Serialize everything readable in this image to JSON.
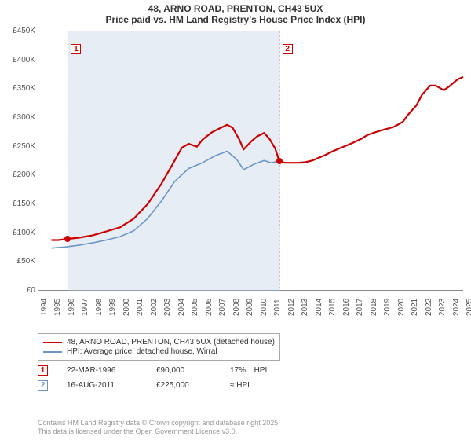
{
  "title_line1": "48, ARNO ROAD, PRENTON, CH43 5UX",
  "title_line2": "Price paid vs. HM Land Registry's House Price Index (HPI)",
  "chart": {
    "type": "line",
    "background_color": "#ffffff",
    "shade_color": "rgba(180,200,225,0.32)",
    "grid_color": "#cccccc",
    "ylim": [
      0,
      450000
    ],
    "ytick_step": 50000,
    "yticks": [
      "£0",
      "£50K",
      "£100K",
      "£150K",
      "£200K",
      "£250K",
      "£300K",
      "£350K",
      "£400K",
      "£450K"
    ],
    "xlim": [
      1994,
      2025
    ],
    "xticks": [
      "1994",
      "1995",
      "1996",
      "1997",
      "1998",
      "1999",
      "2000",
      "2001",
      "2002",
      "2003",
      "2004",
      "2005",
      "2006",
      "2007",
      "2008",
      "2009",
      "2010",
      "2011",
      "2012",
      "2013",
      "2014",
      "2015",
      "2016",
      "2017",
      "2018",
      "2019",
      "2020",
      "2021",
      "2022",
      "2023",
      "2024",
      "2025"
    ],
    "tick_fontsize": 10,
    "series": {
      "price": {
        "label": "48, ARNO ROAD, PRENTON, CH43 5UX (detached house)",
        "color": "#cc0000",
        "line_width": 2.2,
        "data": [
          [
            1995.0,
            88000
          ],
          [
            1995.5,
            88000
          ],
          [
            1996.2,
            90000
          ],
          [
            1997.0,
            92000
          ],
          [
            1998.0,
            96000
          ],
          [
            1999.0,
            103000
          ],
          [
            2000.0,
            110000
          ],
          [
            2001.0,
            125000
          ],
          [
            2002.0,
            150000
          ],
          [
            2003.0,
            185000
          ],
          [
            2003.8,
            218000
          ],
          [
            2004.5,
            248000
          ],
          [
            2005.0,
            255000
          ],
          [
            2005.6,
            250000
          ],
          [
            2006.0,
            262000
          ],
          [
            2006.7,
            275000
          ],
          [
            2007.2,
            281000
          ],
          [
            2007.8,
            288000
          ],
          [
            2008.2,
            283000
          ],
          [
            2008.7,
            262000
          ],
          [
            2009.0,
            245000
          ],
          [
            2009.6,
            260000
          ],
          [
            2010.0,
            268000
          ],
          [
            2010.5,
            274000
          ],
          [
            2010.9,
            263000
          ],
          [
            2011.3,
            247000
          ],
          [
            2011.6,
            225000
          ],
          [
            2012.0,
            222000
          ],
          [
            2012.5,
            222000
          ],
          [
            2013.0,
            222000
          ],
          [
            2013.5,
            223000
          ],
          [
            2014.0,
            226000
          ],
          [
            2014.6,
            232000
          ],
          [
            2015.0,
            236000
          ],
          [
            2015.5,
            242000
          ],
          [
            2016.0,
            247000
          ],
          [
            2016.6,
            253000
          ],
          [
            2017.0,
            257000
          ],
          [
            2017.6,
            264000
          ],
          [
            2018.0,
            270000
          ],
          [
            2018.6,
            275000
          ],
          [
            2019.0,
            278000
          ],
          [
            2019.6,
            282000
          ],
          [
            2020.0,
            285000
          ],
          [
            2020.6,
            293000
          ],
          [
            2021.0,
            306000
          ],
          [
            2021.6,
            322000
          ],
          [
            2022.0,
            340000
          ],
          [
            2022.6,
            356000
          ],
          [
            2023.0,
            356000
          ],
          [
            2023.6,
            348000
          ],
          [
            2024.0,
            355000
          ],
          [
            2024.6,
            367000
          ],
          [
            2025.0,
            371000
          ]
        ]
      },
      "hpi": {
        "label": "HPI: Average price, detached house, Wirral",
        "color": "#6b95c7",
        "line_width": 1.6,
        "data": [
          [
            1995.0,
            74000
          ],
          [
            1996.0,
            76000
          ],
          [
            1997.0,
            79000
          ],
          [
            1998.0,
            83000
          ],
          [
            1999.0,
            88000
          ],
          [
            2000.0,
            94000
          ],
          [
            2001.0,
            104000
          ],
          [
            2002.0,
            125000
          ],
          [
            2003.0,
            155000
          ],
          [
            2004.0,
            190000
          ],
          [
            2005.0,
            212000
          ],
          [
            2006.0,
            222000
          ],
          [
            2007.0,
            235000
          ],
          [
            2007.8,
            242000
          ],
          [
            2008.5,
            228000
          ],
          [
            2009.0,
            210000
          ],
          [
            2009.8,
            220000
          ],
          [
            2010.5,
            226000
          ],
          [
            2011.0,
            222000
          ],
          [
            2011.6,
            225000
          ]
        ]
      }
    },
    "shade_x": [
      1996.2,
      2011.6
    ],
    "markers": [
      {
        "n": "1",
        "x": 1996.2,
        "y": 90000,
        "color": "#cc0000",
        "label_y": 428000
      },
      {
        "n": "2",
        "x": 2011.6,
        "y": 225000,
        "color": "#cc0000",
        "label_y": 428000
      }
    ]
  },
  "legend": {
    "rows": [
      {
        "color": "#cc0000",
        "label": "48, ARNO ROAD, PRENTON, CH43 5UX (detached house)"
      },
      {
        "color": "#6b95c7",
        "label": "HPI: Average price, detached house, Wirral"
      }
    ]
  },
  "sales": [
    {
      "n": "1",
      "color": "#cc0000",
      "date": "22-MAR-1996",
      "price": "£90,000",
      "note": "17% ↑ HPI"
    },
    {
      "n": "2",
      "color": "#6b95c7",
      "date": "16-AUG-2011",
      "price": "£225,000",
      "note": "≈ HPI"
    }
  ],
  "footer_line1": "Contains HM Land Registry data © Crown copyright and database right 2025.",
  "footer_line2": "This data is licensed under the Open Government Licence v3.0."
}
